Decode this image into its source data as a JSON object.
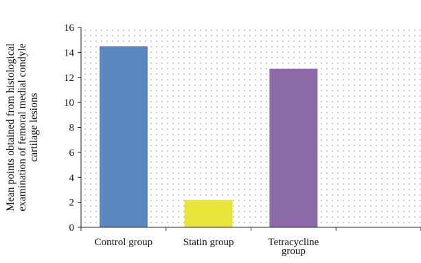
{
  "chart_data": {
    "type": "bar",
    "title": "",
    "xlabel": "",
    "ylabel_lines": [
      "Mean points obtained from histological",
      "examination of femoral medial condyle",
      "cartilage lesions"
    ],
    "ylim": [
      0,
      16
    ],
    "yticks": [
      0,
      2,
      4,
      6,
      8,
      10,
      12,
      14,
      16
    ],
    "categories": [
      {
        "label_lines": [
          "Control group"
        ]
      },
      {
        "label_lines": [
          "Statin group"
        ]
      },
      {
        "label_lines": [
          "Tetracycline",
          "group"
        ]
      },
      {
        "label_lines": []
      }
    ],
    "values": [
      14.5,
      2.2,
      12.7,
      null
    ],
    "colors": [
      "#5b87c0",
      "#e8e43a",
      "#8c6aa8",
      null
    ],
    "grid": "dotted"
  }
}
